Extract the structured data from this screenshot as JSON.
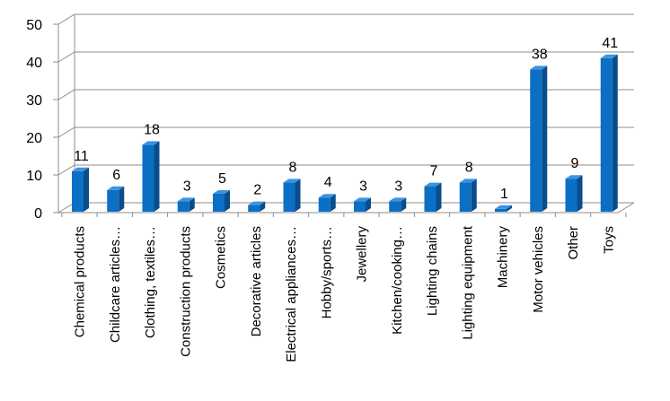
{
  "chart_data": {
    "type": "bar",
    "style": "3d-column",
    "categories": [
      "Chemical products",
      "Childcare articles…",
      "Clothing, textiles…",
      "Construction products",
      "Cosmetics",
      "Decorative articles",
      "Electrical appliances…",
      "Hobby/sports…",
      "Jewellery",
      "Kitchen/cooking…",
      "Lighting chains",
      "Lighting equipment",
      "Machinery",
      "Motor vehicles",
      "Other",
      "Toys"
    ],
    "values": [
      11,
      6,
      18,
      3,
      5,
      2,
      8,
      4,
      3,
      3,
      7,
      8,
      1,
      38,
      9,
      41
    ],
    "data_labels": [
      "11",
      "6",
      "18",
      "3",
      "5",
      "2",
      "8",
      "4",
      "3",
      "3",
      "7",
      "8",
      "1",
      "38",
      "9",
      "41"
    ],
    "yticks": [
      "0",
      "10",
      "20",
      "30",
      "40",
      "50"
    ],
    "title": "",
    "xlabel": "",
    "ylabel": "",
    "ylim": [
      0,
      50
    ],
    "grid": true,
    "legend": "none",
    "colors": {
      "bar_front": "#0b6fc4",
      "bar_side": "#0a4d8c",
      "bar_top": "#3a93e0",
      "grid": "#8c8c8c"
    }
  }
}
